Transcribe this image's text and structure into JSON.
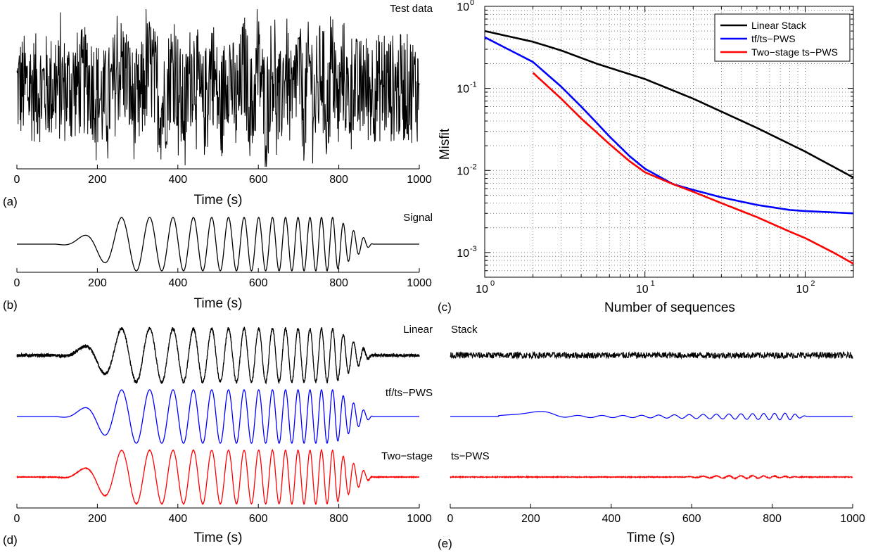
{
  "chart_data": [
    {
      "panel": "(a)",
      "type": "line",
      "title": "Test data",
      "xlabel": "Time (s)",
      "xticks": [
        "0",
        "200",
        "400",
        "600",
        "800",
        "1000"
      ],
      "xlim": [
        0,
        1000
      ],
      "series": [
        {
          "color": "#000000",
          "values_description_only": false
        }
      ]
    },
    {
      "panel": "(b)",
      "type": "line",
      "title": "Signal",
      "xlabel": "Time (s)",
      "xticks": [
        "0",
        "200",
        "400",
        "600",
        "800",
        "1000"
      ],
      "xlim": [
        0,
        1000
      ],
      "series": [
        {
          "color": "#000000"
        }
      ]
    },
    {
      "panel": "(c)",
      "type": "line",
      "xlabel": "Number of sequences",
      "ylabel": "Misfit",
      "xscale": "log",
      "yscale": "log",
      "xlim": [
        1,
        200
      ],
      "ylim": [
        0.0005,
        1
      ],
      "grid": true,
      "legend_position": "top-right",
      "xtick_labels": [
        {
          "base": "10",
          "exp": "0"
        },
        {
          "base": "10",
          "exp": "1"
        },
        {
          "base": "10",
          "exp": "2"
        }
      ],
      "ytick_labels": [
        {
          "base": "10",
          "exp": "0"
        },
        {
          "base": "10",
          "exp": "-1"
        },
        {
          "base": "10",
          "exp": "-2"
        },
        {
          "base": "10",
          "exp": "-3"
        }
      ],
      "series": [
        {
          "name": "Linear Stack",
          "color": "#000000",
          "x": [
            1,
            2,
            3,
            5,
            10,
            20,
            50,
            100,
            200
          ],
          "y": [
            0.5,
            0.37,
            0.29,
            0.2,
            0.13,
            0.075,
            0.033,
            0.017,
            0.0082
          ]
        },
        {
          "name": "tf/ts-PWS",
          "color": "#0000ff",
          "x": [
            1,
            2,
            3,
            4,
            5,
            6,
            8,
            10,
            15,
            20,
            30,
            50,
            80,
            100,
            200
          ],
          "y": [
            0.42,
            0.21,
            0.105,
            0.06,
            0.038,
            0.026,
            0.015,
            0.0105,
            0.0068,
            0.0058,
            0.0047,
            0.0038,
            0.0033,
            0.0032,
            0.003
          ]
        },
        {
          "name": "Two-stage ts-PWS",
          "color": "#ff0000",
          "x": [
            2,
            3,
            4,
            5,
            6,
            8,
            10,
            15,
            20,
            30,
            50,
            80,
            100,
            150,
            200
          ],
          "y": [
            0.155,
            0.075,
            0.043,
            0.029,
            0.021,
            0.013,
            0.0095,
            0.0068,
            0.0055,
            0.004,
            0.0027,
            0.0018,
            0.0015,
            0.001,
            0.00073
          ]
        }
      ]
    },
    {
      "panel": "(d)",
      "type": "line",
      "xlabel": "Time (s)",
      "xticks": [
        "0",
        "200",
        "400",
        "600",
        "800",
        "1000"
      ],
      "xlim": [
        0,
        1000
      ],
      "trace_labels": [
        "Linear",
        "tf/ts−PWS",
        "Two−stage"
      ],
      "series": [
        {
          "name": "Linear Stack",
          "color": "#000000",
          "noise": 0.06
        },
        {
          "name": "tf/ts-PWS",
          "color": "#0000ff",
          "noise": 0.0
        },
        {
          "name": "Two-stage ts-PWS",
          "color": "#ff0000",
          "noise": 0.012
        }
      ]
    },
    {
      "panel": "(e)",
      "type": "line",
      "xlabel": "Time (s)",
      "xticks": [
        "0",
        "200",
        "400",
        "600",
        "800",
        "1000"
      ],
      "xlim": [
        0,
        1000
      ],
      "trace_labels": [
        "Stack",
        "",
        "ts−PWS"
      ],
      "series": [
        {
          "name": "Linear Stack residual",
          "color": "#000000"
        },
        {
          "name": "tf/ts-PWS residual",
          "color": "#0000ff"
        },
        {
          "name": "Two-stage ts-PWS residual",
          "color": "#ff0000"
        }
      ]
    }
  ],
  "labels": {
    "a": "(a)",
    "b": "(b)",
    "c": "(c)",
    "d": "(d)",
    "e": "(e)",
    "test_data": "Test data",
    "signal": "Signal",
    "time": "Time (s)",
    "nseq": "Number of sequences",
    "misfit": "Misfit",
    "linear": "Linear",
    "stack": "Stack",
    "tfts": "tf/ts−PWS",
    "twostage": "Two−stage",
    "tspws": "ts−PWS",
    "leg1": "Linear Stack",
    "leg2": "tf/ts−PWS",
    "leg3": "Two−stage ts−PWS"
  }
}
